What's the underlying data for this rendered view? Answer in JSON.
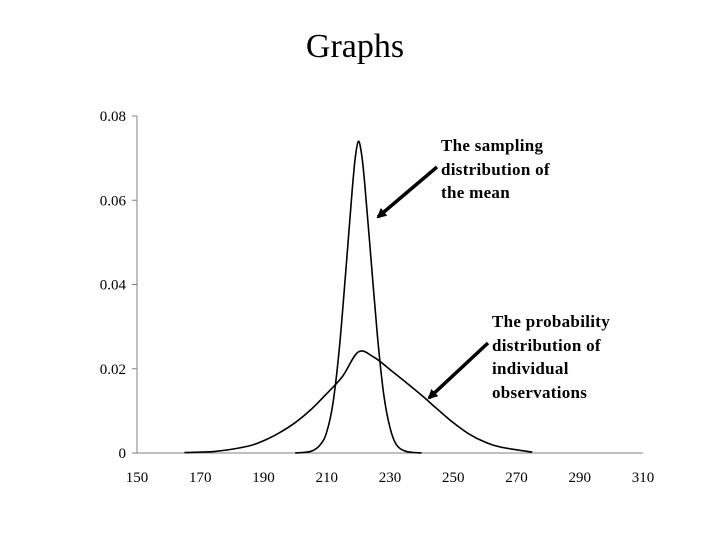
{
  "slide": {
    "title": "Graphs"
  },
  "chart_data": {
    "type": "line",
    "title": "",
    "xlabel": "",
    "ylabel": "",
    "xlim": [
      150,
      310
    ],
    "ylim": [
      0,
      0.08
    ],
    "x_ticks": [
      "150",
      "170",
      "190",
      "210",
      "230",
      "250",
      "270",
      "290",
      "310"
    ],
    "y_ticks": [
      "0",
      "0.02",
      "0.04",
      "0.06",
      "0.08"
    ],
    "grid": false,
    "colors": {
      "line": "#000000",
      "axis": "#808080"
    },
    "series": [
      {
        "x": [
          165,
          175,
          185,
          190,
          195,
          200,
          205,
          210,
          215,
          220,
          225,
          230,
          235,
          240,
          245,
          250,
          255,
          260,
          265,
          275
        ],
        "values": [
          0.0001,
          0.0004,
          0.0016,
          0.0029,
          0.0048,
          0.0072,
          0.0103,
          0.0141,
          0.0182,
          0.024,
          0.0227,
          0.0198,
          0.0168,
          0.0137,
          0.0104,
          0.0072,
          0.0045,
          0.0026,
          0.0014,
          0.0002
        ]
      },
      {
        "x": [
          200,
          205,
          208,
          210,
          212,
          214,
          216,
          218,
          219,
          220,
          221,
          222,
          224,
          226,
          228,
          230,
          232,
          235,
          240
        ],
        "values": [
          0.0,
          0.0004,
          0.002,
          0.005,
          0.012,
          0.025,
          0.043,
          0.062,
          0.07,
          0.074,
          0.071,
          0.064,
          0.046,
          0.028,
          0.014,
          0.006,
          0.002,
          0.0004,
          0.0
        ]
      }
    ],
    "annotations": [
      {
        "lines": [
          "The sampling",
          "distribution of",
          "the mean"
        ]
      },
      {
        "lines": [
          "The probability",
          "distribution of",
          "individual",
          "observations"
        ]
      }
    ]
  }
}
